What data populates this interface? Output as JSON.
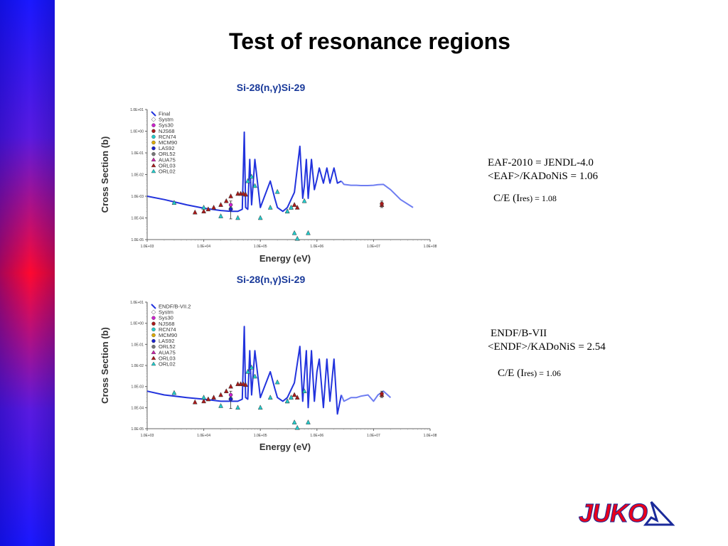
{
  "slide": {
    "title": "Test of resonance regions"
  },
  "notes": [
    {
      "line1": "EAF-2010 = JENDL-4.0",
      "line2": "<EAF>/KADoNiS = 1.06",
      "ce_prefix": "C/E (I",
      "ce_sub": "res)",
      "ce_value": " = 1.08"
    },
    {
      "line1": "ENDF/B-VII",
      "line2": "<ENDF>/KADoNiS = 2.54",
      "ce_prefix": "C/E (I",
      "ce_sub": "res)",
      "ce_value": " = 1.06"
    }
  ],
  "logo": {
    "text": "JUKO",
    "color": "#e8001c",
    "accent": "#1a2a9a"
  },
  "chart_data": [
    {
      "type": "scatter",
      "title": "Si-28(n,γ)Si-29",
      "xlabel": "Energy (eV)",
      "ylabel": "Cross Section (b)",
      "xscale": "log",
      "yscale": "log",
      "xlim": [
        1000,
        100000000
      ],
      "ylim": [
        1e-05,
        10
      ],
      "xticks": [
        "1.0E+03",
        "1.0E+04",
        "1.0E+05",
        "1.0E+06",
        "1.0E+07",
        "1.0E+08"
      ],
      "yticks": [
        "1.0E+01",
        "1.0E+00",
        "1.0E-01",
        "1.0E-02",
        "1.0E-03",
        "1.0E-04",
        "1.0E-05"
      ],
      "legend_position": "top-left",
      "legend": [
        {
          "name": "Final",
          "marker": "line",
          "color": "#2233dd"
        },
        {
          "name": "Systm",
          "marker": "diamond",
          "color": "#aaaaaa"
        },
        {
          "name": "Sys30",
          "marker": "circle",
          "color": "#cc22cc"
        },
        {
          "name": "NJS68",
          "marker": "circle",
          "color": "#aa1a1a"
        },
        {
          "name": "RCN74",
          "marker": "circle",
          "color": "#22cccc"
        },
        {
          "name": "MCM90",
          "marker": "circle",
          "color": "#ddaa00"
        },
        {
          "name": "LAS92",
          "marker": "circle",
          "color": "#1a22cc"
        },
        {
          "name": "ORL52",
          "marker": "circle",
          "color": "#777777"
        },
        {
          "name": "AUA75",
          "marker": "triangle",
          "color": "#cc22aa"
        },
        {
          "name": "ORL03",
          "marker": "triangle",
          "color": "#aa1a1a"
        },
        {
          "name": "ORL02",
          "marker": "triangle",
          "color": "#22cccc"
        }
      ],
      "curve": {
        "color": "#2233dd",
        "stops_at": 2700000,
        "x": [
          1000,
          2000,
          5000,
          10000,
          20000,
          30000,
          40000,
          48000,
          52000,
          55000,
          60000,
          65000,
          70000,
          80000,
          100000,
          150000,
          180000,
          200000,
          250000,
          300000,
          400000,
          500000,
          560000,
          600000,
          650000,
          700000,
          800000,
          900000,
          1000000,
          1100000,
          1300000,
          1500000,
          1700000,
          2000000,
          2300000,
          2700000,
          3000000,
          4000000,
          5000000,
          6000000,
          8000000,
          10000000,
          12000000,
          15000000,
          20000000,
          30000000,
          50000000
        ],
        "y": [
          0.001,
          0.0007,
          0.0004,
          0.00028,
          0.00022,
          0.0002,
          0.0002,
          0.00025,
          0.9,
          0.0003,
          0.00025,
          0.05,
          0.0004,
          0.05,
          0.0003,
          0.005,
          0.0008,
          0.0003,
          0.0002,
          0.0003,
          0.0015,
          0.2,
          0.0008,
          0.003,
          0.05,
          0.0008,
          0.05,
          0.002,
          0.006,
          0.02,
          0.004,
          0.02,
          0.004,
          0.02,
          0.004,
          0.005,
          0.0035,
          0.0032,
          0.0032,
          0.0031,
          0.0031,
          0.0032,
          0.0034,
          0.0035,
          0.002,
          0.0007,
          0.0003
        ]
      },
      "points": [
        {
          "series": "ORL03",
          "x": [
            7000,
            10000,
            12000,
            15000,
            20000,
            25000,
            30000,
            40000,
            45000,
            50000,
            55000,
            300000,
            350000,
            400000,
            450000,
            14000000
          ],
          "y": [
            0.00018,
            0.0002,
            0.00025,
            0.0003,
            0.0004,
            0.0006,
            0.001,
            0.0013,
            0.0013,
            0.0013,
            0.0012,
            0.0002,
            0.0003,
            0.0004,
            0.0003,
            0.0004
          ]
        },
        {
          "series": "ORL02",
          "x": [
            3000,
            10000,
            20000,
            30000,
            40000,
            60000,
            70000,
            80000,
            100000,
            150000,
            200000,
            300000,
            350000,
            400000,
            450000,
            600000,
            700000
          ],
          "y": [
            0.0005,
            0.0003,
            0.00012,
            0.0003,
            0.0001,
            0.005,
            0.008,
            0.003,
            0.0001,
            0.0003,
            0.0016,
            0.0002,
            0.0003,
            2e-05,
            1.1e-05,
            0.0006,
            2e-05
          ]
        },
        {
          "series": "LAS92",
          "x": [
            30000
          ],
          "y": [
            0.00025
          ],
          "err": [
            9e-05,
            0.0006
          ]
        },
        {
          "series": "Sys30",
          "x": [
            30000
          ],
          "y": [
            0.0004
          ]
        },
        {
          "series": "NJS68",
          "x": [
            14000000
          ],
          "y": [
            0.00045
          ],
          "err": [
            0.0003,
            0.0006
          ]
        }
      ]
    },
    {
      "type": "scatter",
      "title": "Si-28(n,γ)Si-29",
      "xlabel": "Energy (eV)",
      "ylabel": "Cross Section (b)",
      "xscale": "log",
      "yscale": "log",
      "xlim": [
        1000,
        100000000
      ],
      "ylim": [
        1e-05,
        10
      ],
      "xticks": [
        "1.0E+03",
        "1.0E+04",
        "1.0E+05",
        "1.0E+06",
        "1.0E+07",
        "1.0E+08"
      ],
      "yticks": [
        "1.0E+01",
        "1.0E+00",
        "1.0E-01",
        "1.0E-02",
        "1.0E-03",
        "1.0E-04",
        "1.0E-05"
      ],
      "legend_position": "top-left",
      "legend": [
        {
          "name": "ENDF/B-VII.2",
          "marker": "line",
          "color": "#2233dd"
        },
        {
          "name": "Systm",
          "marker": "diamond",
          "color": "#aaaaaa"
        },
        {
          "name": "Sys30",
          "marker": "circle",
          "color": "#cc22cc"
        },
        {
          "name": "NJS68",
          "marker": "circle",
          "color": "#aa1a1a"
        },
        {
          "name": "RCN74",
          "marker": "circle",
          "color": "#22cccc"
        },
        {
          "name": "MCM90",
          "marker": "circle",
          "color": "#ddaa00"
        },
        {
          "name": "LAS92",
          "marker": "circle",
          "color": "#1a22cc"
        },
        {
          "name": "ORL52",
          "marker": "circle",
          "color": "#777777"
        },
        {
          "name": "AUA75",
          "marker": "triangle",
          "color": "#cc22aa"
        },
        {
          "name": "ORL03",
          "marker": "triangle",
          "color": "#aa1a1a"
        },
        {
          "name": "ORL02",
          "marker": "triangle",
          "color": "#22cccc"
        }
      ],
      "curve": {
        "color": "#2233dd",
        "stops_at": 2700000,
        "x": [
          1000,
          2000,
          5000,
          10000,
          20000,
          30000,
          40000,
          48000,
          52000,
          55000,
          60000,
          65000,
          70000,
          80000,
          100000,
          150000,
          180000,
          200000,
          250000,
          300000,
          400000,
          500000,
          560000,
          600000,
          650000,
          700000,
          800000,
          900000,
          1000000,
          1100000,
          1300000,
          1500000,
          1700000,
          2000000,
          2300000,
          2700000,
          3000000,
          4000000,
          5000000,
          6000000,
          8000000,
          10000000,
          12000000,
          15000000,
          20000000
        ],
        "y": [
          0.0006,
          0.0004,
          0.0003,
          0.00025,
          0.0002,
          0.0002,
          0.0002,
          0.00025,
          0.7,
          0.0003,
          0.00025,
          0.05,
          0.0004,
          0.05,
          0.0003,
          0.005,
          0.0008,
          0.0003,
          0.0002,
          0.0003,
          0.0015,
          0.08,
          0.0002,
          0.003,
          0.05,
          0.0001,
          0.05,
          0.0002,
          0.005,
          0.02,
          0.0001,
          0.02,
          0.0002,
          0.02,
          5e-05,
          0.0004,
          0.0002,
          0.0003,
          0.0003,
          0.00035,
          0.0004,
          0.0002,
          0.0004,
          0.0006,
          0.0003
        ]
      },
      "points": [
        {
          "series": "ORL03",
          "x": [
            7000,
            10000,
            12000,
            15000,
            20000,
            25000,
            30000,
            40000,
            45000,
            50000,
            55000,
            300000,
            350000,
            400000,
            450000,
            14000000
          ],
          "y": [
            0.00018,
            0.0002,
            0.00025,
            0.0003,
            0.0004,
            0.0006,
            0.001,
            0.0013,
            0.0013,
            0.0013,
            0.0012,
            0.0002,
            0.0003,
            0.0004,
            0.0003,
            0.0004
          ]
        },
        {
          "series": "ORL02",
          "x": [
            3000,
            10000,
            20000,
            30000,
            40000,
            60000,
            70000,
            80000,
            100000,
            150000,
            200000,
            300000,
            350000,
            400000,
            450000,
            600000,
            700000
          ],
          "y": [
            0.0005,
            0.0003,
            0.00012,
            0.0003,
            0.0001,
            0.005,
            0.008,
            0.003,
            0.0001,
            0.0003,
            0.0016,
            0.0002,
            0.0003,
            2e-05,
            1.1e-05,
            0.0006,
            2e-05
          ]
        },
        {
          "series": "LAS92",
          "x": [
            30000
          ],
          "y": [
            0.00025
          ],
          "err": [
            9e-05,
            0.0006
          ]
        },
        {
          "series": "Sys30",
          "x": [
            30000
          ],
          "y": [
            0.0004
          ]
        },
        {
          "series": "NJS68",
          "x": [
            14000000
          ],
          "y": [
            0.00045
          ],
          "err": [
            0.0003,
            0.0006
          ]
        }
      ]
    }
  ]
}
